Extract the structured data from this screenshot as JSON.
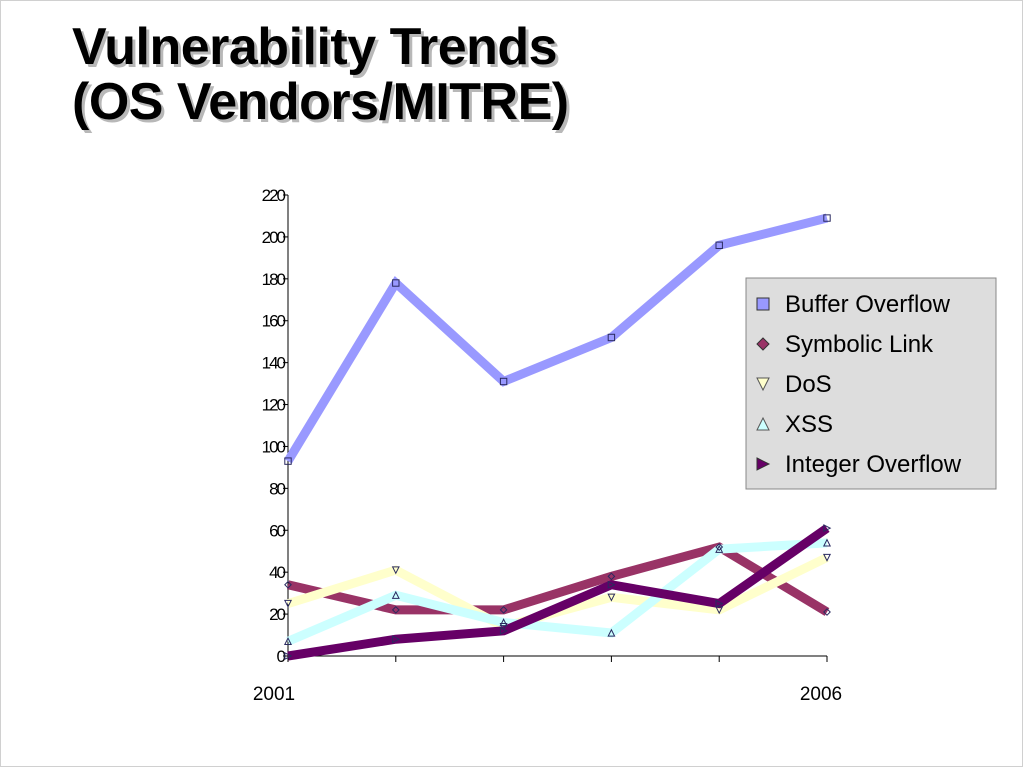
{
  "title": {
    "line1": "Vulnerability Trends",
    "line2": "(OS Vendors/MITRE)"
  },
  "chart_data": {
    "type": "line",
    "x": [
      2001,
      2002,
      2003,
      2004,
      2005,
      2006
    ],
    "x_tick_labels": [
      "2001",
      "",
      "",
      "",
      "",
      "2006"
    ],
    "ylim": [
      0,
      220
    ],
    "y_ticks": [
      0,
      20,
      40,
      60,
      80,
      100,
      120,
      140,
      160,
      180,
      200,
      220
    ],
    "grid": false,
    "legend_position": "right",
    "series": [
      {
        "name": "Buffer Overflow",
        "color": "#9999ff",
        "marker": "square",
        "values": [
          93,
          178,
          131,
          152,
          196,
          209
        ]
      },
      {
        "name": "Symbolic Link",
        "color": "#993366",
        "marker": "diamond",
        "values": [
          34,
          22,
          22,
          38,
          52,
          21
        ]
      },
      {
        "name": "DoS",
        "color": "#ffffcc",
        "marker": "triangle-down",
        "values": [
          25,
          41,
          14,
          28,
          22,
          47
        ]
      },
      {
        "name": "XSS",
        "color": "#ccffff",
        "marker": "triangle-up",
        "values": [
          7,
          29,
          16,
          11,
          51,
          54
        ]
      },
      {
        "name": "Integer Overflow",
        "color": "#660066",
        "marker": "triangle-right",
        "values": [
          0,
          8,
          12,
          34,
          25,
          61
        ]
      }
    ]
  }
}
